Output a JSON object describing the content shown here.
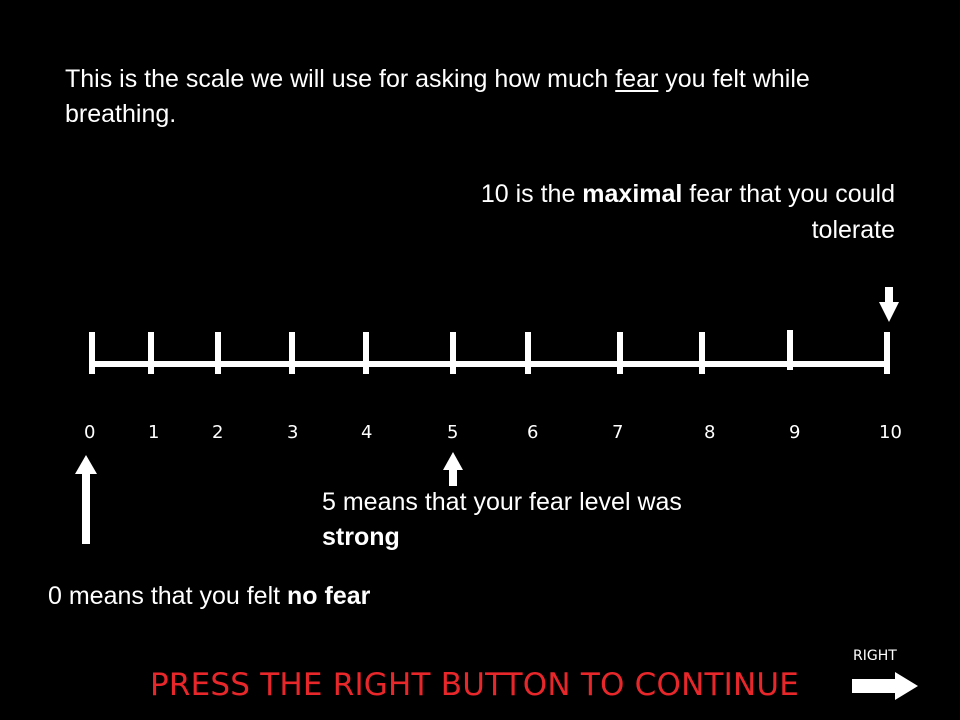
{
  "intro": {
    "text_before": "This is the scale we will use for asking how much ",
    "emphasis": "fear",
    "text_after": " you felt while breathing."
  },
  "max_note": {
    "prefix": "10 is the ",
    "bold": "maximal",
    "suffix": " fear that you could tolerate"
  },
  "mid_note": {
    "prefix": "5 means that your fear level was ",
    "bold": "strong"
  },
  "zero_note": {
    "prefix": "0 means that you felt ",
    "bold": "no fear"
  },
  "scale": {
    "min": 0,
    "max": 10,
    "labels": [
      "0",
      "1",
      "2",
      "3",
      "4",
      "5",
      "6",
      "7",
      "8",
      "9",
      "10"
    ]
  },
  "continue_prompt": "PRESS THE RIGHT BUTTON TO CONTINUE",
  "right_button": {
    "label": "RIGHT",
    "icon": "right-arrow-icon"
  },
  "colors": {
    "background": "#000000",
    "foreground": "#ffffff",
    "prompt": "#e8272b"
  }
}
